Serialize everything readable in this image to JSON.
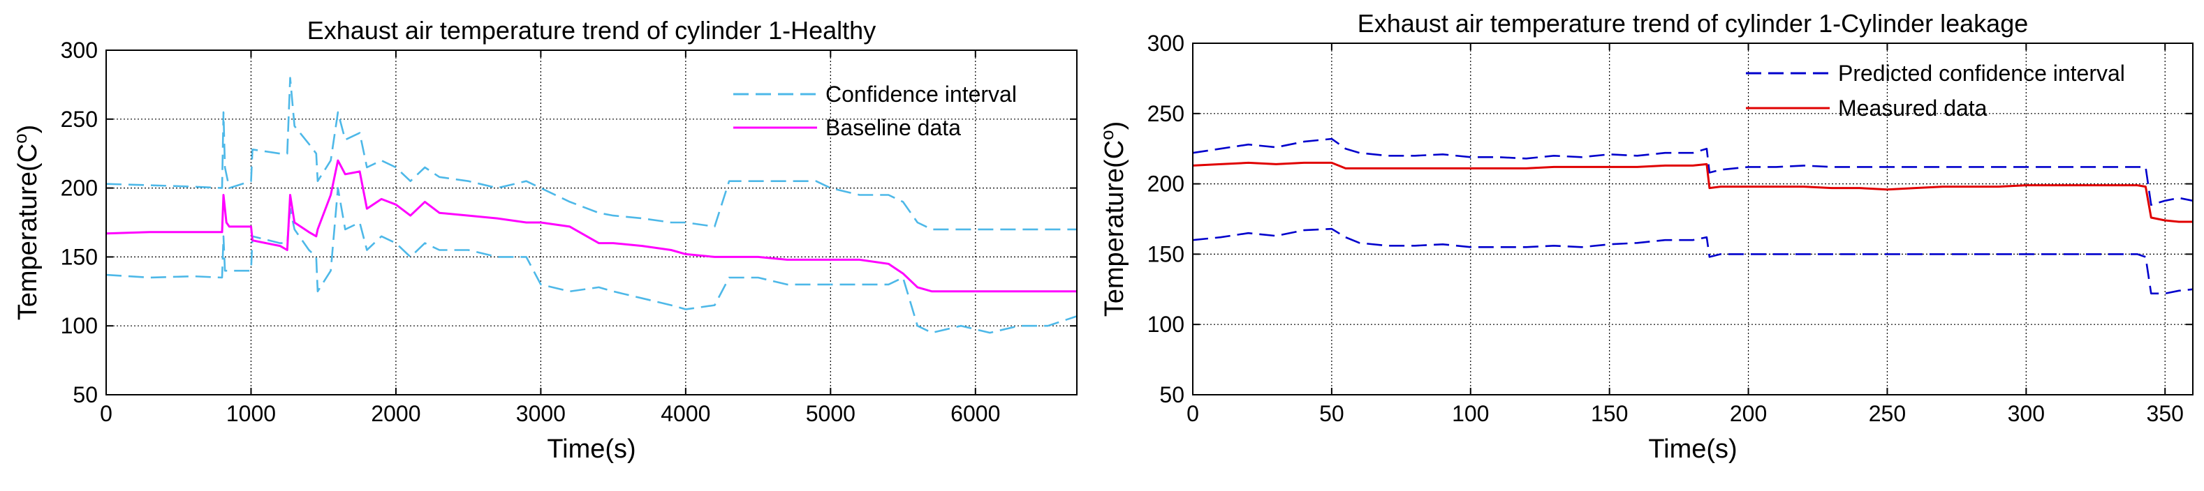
{
  "chart_data": [
    {
      "type": "line",
      "title": "Exhaust air temperature trend of cylinder 1-Healthy",
      "xlabel": "Time(s)",
      "ylabel": "Temperature(C",
      "ylabel_sup": "o",
      "ylabel_close": ")",
      "xlim": [
        0,
        6700
      ],
      "ylim": [
        50,
        300
      ],
      "xticks": [
        0,
        1000,
        2000,
        3000,
        4000,
        5000,
        6000
      ],
      "yticks": [
        50,
        100,
        150,
        200,
        250,
        300
      ],
      "grid": true,
      "legend_position": "top-right",
      "legend": [
        "Confidence interval",
        "Baseline data"
      ],
      "colors": {
        "confidence": "#4db8e8",
        "baseline": "#ff00ff"
      },
      "series": [
        {
          "name": "Confidence interval",
          "style": "dashed",
          "x": [
            0,
            300,
            600,
            800,
            810,
            820,
            850,
            1000,
            1010,
            1200,
            1250,
            1270,
            1300,
            1400,
            1450,
            1460,
            1550,
            1600,
            1650,
            1750,
            1800,
            1900,
            2000,
            2100,
            2200,
            2300,
            2500,
            2700,
            2900,
            3000,
            3200,
            3400,
            3500,
            3700,
            3900,
            4000,
            4200,
            4300,
            4500,
            4700,
            4900,
            5000,
            5200,
            5400,
            5500,
            5600,
            5700,
            5900,
            6100,
            6300,
            6500,
            6700
          ],
          "values": [
            203,
            202,
            201,
            200,
            255,
            215,
            200,
            205,
            228,
            225,
            225,
            280,
            245,
            232,
            225,
            205,
            220,
            255,
            235,
            240,
            215,
            220,
            215,
            205,
            215,
            208,
            205,
            200,
            205,
            200,
            190,
            182,
            180,
            178,
            175,
            175,
            172,
            205,
            205,
            205,
            205,
            200,
            195,
            195,
            190,
            175,
            170,
            170,
            170,
            170,
            170,
            170
          ]
        },
        {
          "name": "Confidence interval (lower)",
          "style": "dashed",
          "x": [
            0,
            300,
            600,
            800,
            810,
            820,
            850,
            1000,
            1010,
            1200,
            1250,
            1270,
            1300,
            1400,
            1450,
            1460,
            1550,
            1600,
            1650,
            1750,
            1800,
            1900,
            2000,
            2100,
            2200,
            2300,
            2500,
            2700,
            2900,
            3000,
            3200,
            3400,
            3500,
            3700,
            3900,
            4000,
            4200,
            4300,
            4500,
            4700,
            4900,
            5000,
            5200,
            5400,
            5500,
            5600,
            5700,
            5900,
            6100,
            6300,
            6500,
            6700
          ],
          "values": [
            137,
            135,
            136,
            135,
            165,
            140,
            140,
            140,
            165,
            160,
            160,
            185,
            170,
            155,
            150,
            125,
            140,
            200,
            170,
            175,
            155,
            165,
            160,
            150,
            160,
            155,
            155,
            150,
            150,
            130,
            125,
            128,
            125,
            120,
            115,
            112,
            115,
            135,
            135,
            130,
            130,
            130,
            130,
            130,
            135,
            100,
            95,
            100,
            95,
            100,
            100,
            107
          ]
        },
        {
          "name": "Baseline data",
          "style": "solid",
          "x": [
            0,
            300,
            600,
            800,
            810,
            830,
            850,
            1000,
            1010,
            1200,
            1250,
            1270,
            1300,
            1400,
            1450,
            1460,
            1550,
            1600,
            1650,
            1750,
            1800,
            1900,
            2000,
            2100,
            2200,
            2300,
            2500,
            2700,
            2900,
            3000,
            3200,
            3400,
            3500,
            3700,
            3900,
            4000,
            4200,
            4300,
            4500,
            4700,
            4900,
            5000,
            5200,
            5400,
            5500,
            5600,
            5700,
            5900,
            6100,
            6300,
            6500,
            6700
          ],
          "values": [
            167,
            168,
            168,
            168,
            195,
            175,
            172,
            172,
            162,
            158,
            155,
            195,
            175,
            168,
            165,
            170,
            195,
            220,
            210,
            212,
            185,
            192,
            188,
            180,
            190,
            182,
            180,
            178,
            175,
            175,
            172,
            160,
            160,
            158,
            155,
            152,
            150,
            150,
            150,
            148,
            148,
            148,
            148,
            145,
            138,
            128,
            125,
            125,
            125,
            125,
            125,
            125
          ]
        }
      ]
    },
    {
      "type": "line",
      "title": "Exhaust air temperature trend of cylinder 1-Cylinder leakage",
      "xlabel": "Time(s)",
      "ylabel": "Temperature(C",
      "ylabel_sup": "o",
      "ylabel_close": ")",
      "xlim": [
        0,
        360
      ],
      "ylim": [
        50,
        300
      ],
      "xticks": [
        0,
        50,
        100,
        150,
        200,
        250,
        300,
        350
      ],
      "yticks": [
        50,
        100,
        150,
        200,
        250,
        300
      ],
      "grid": true,
      "legend_position": "top-right",
      "legend": [
        "Predicted confidence interval",
        "Measured data"
      ],
      "colors": {
        "confidence": "#0000cc",
        "measured": "#e00000"
      },
      "series": [
        {
          "name": "Predicted confidence interval",
          "style": "dashed",
          "x": [
            0,
            10,
            20,
            30,
            40,
            50,
            55,
            60,
            70,
            80,
            90,
            100,
            110,
            120,
            130,
            140,
            150,
            160,
            170,
            180,
            185,
            186,
            190,
            200,
            210,
            220,
            230,
            240,
            250,
            260,
            270,
            280,
            290,
            300,
            310,
            320,
            330,
            340,
            343,
            345,
            350,
            355,
            360
          ],
          "values": [
            222,
            225,
            228,
            226,
            230,
            232,
            225,
            222,
            220,
            220,
            221,
            219,
            219,
            218,
            220,
            219,
            221,
            220,
            222,
            222,
            225,
            208,
            210,
            212,
            212,
            213,
            212,
            212,
            212,
            212,
            212,
            212,
            212,
            212,
            212,
            212,
            212,
            212,
            212,
            185,
            188,
            190,
            188
          ]
        },
        {
          "name": "Predicted confidence interval (lower)",
          "style": "dashed",
          "x": [
            0,
            10,
            20,
            30,
            40,
            50,
            55,
            60,
            70,
            80,
            90,
            100,
            110,
            120,
            130,
            140,
            150,
            160,
            170,
            180,
            185,
            186,
            190,
            200,
            210,
            220,
            230,
            240,
            250,
            260,
            270,
            280,
            290,
            300,
            310,
            320,
            330,
            340,
            343,
            345,
            350,
            355,
            360
          ],
          "values": [
            160,
            162,
            165,
            163,
            167,
            168,
            162,
            158,
            156,
            156,
            157,
            155,
            155,
            155,
            156,
            155,
            157,
            158,
            160,
            160,
            162,
            148,
            150,
            150,
            150,
            150,
            150,
            150,
            150,
            150,
            150,
            150,
            150,
            150,
            150,
            150,
            150,
            150,
            148,
            122,
            122,
            124,
            125
          ]
        },
        {
          "name": "Measured data",
          "style": "solid",
          "x": [
            0,
            10,
            20,
            30,
            40,
            50,
            55,
            60,
            70,
            80,
            90,
            100,
            110,
            120,
            130,
            140,
            150,
            160,
            170,
            180,
            185,
            186,
            190,
            200,
            210,
            220,
            230,
            240,
            250,
            260,
            270,
            280,
            290,
            300,
            310,
            320,
            330,
            340,
            343,
            345,
            350,
            355,
            360
          ],
          "values": [
            213,
            214,
            215,
            214,
            215,
            215,
            211,
            211,
            211,
            211,
            211,
            211,
            211,
            211,
            212,
            212,
            212,
            212,
            213,
            213,
            214,
            197,
            198,
            198,
            198,
            198,
            197,
            197,
            196,
            197,
            198,
            198,
            198,
            199,
            199,
            199,
            199,
            199,
            198,
            176,
            174,
            173,
            173
          ]
        }
      ]
    }
  ]
}
